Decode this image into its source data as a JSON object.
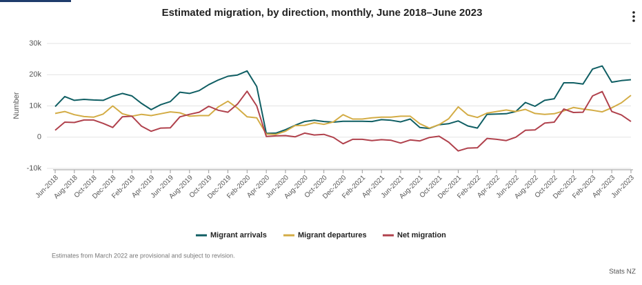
{
  "chart_data": {
    "type": "line",
    "title": "Estimated migration, by direction, monthly, June 2018–June 2023",
    "y_label": "Number",
    "note": "Estimates from March 2022 are provisional and subject to revision.",
    "source": "Stats NZ",
    "categories": [
      "Jun-2018",
      null,
      "Aug-2018",
      null,
      "Oct-2018",
      null,
      "Dec-2018",
      null,
      "Feb-2019",
      null,
      "Apr-2019",
      null,
      "Jun-2019",
      null,
      "Aug-2019",
      null,
      "Oct-2019",
      null,
      "Dec-2019",
      null,
      "Feb-2020",
      null,
      "Apr-2020",
      null,
      "Jun-2020",
      null,
      "Aug-2020",
      null,
      "Oct-2020",
      null,
      "Dec-2020",
      null,
      "Feb-2021",
      null,
      "Apr-2021",
      null,
      "Jun-2021",
      null,
      "Aug-2021",
      null,
      "Oct-2021",
      null,
      "Dec-2021",
      null,
      "Feb-2022",
      null,
      "Apr-2022",
      null,
      "Jun-2022",
      null,
      "Aug-2022",
      null,
      "Oct-2022",
      null,
      "Dec-2022",
      null,
      "Feb-2023",
      null,
      "Apr-2023",
      null,
      "Jun-2023"
    ],
    "series": [
      {
        "name": "Migrant arrivals",
        "color": "#0f5e63",
        "values": [
          9800,
          13000,
          11800,
          12100,
          11900,
          11800,
          13100,
          14000,
          13200,
          10800,
          8800,
          10400,
          11400,
          14400,
          14000,
          14900,
          16800,
          18300,
          19500,
          19900,
          21200,
          16200,
          1200,
          1300,
          2400,
          3800,
          5000,
          5400,
          5000,
          4800,
          5100,
          5100,
          5100,
          5000,
          5600,
          5400,
          4900,
          5800,
          3100,
          2800,
          4000,
          4300,
          5200,
          3600,
          2900,
          7300,
          7400,
          7500,
          8200,
          11100,
          9900,
          11800,
          12300,
          17400,
          17400,
          17000,
          21800,
          22800,
          17600,
          18100,
          18400
        ]
      },
      {
        "name": "Migrant departures",
        "color": "#d3ac45",
        "values": [
          7600,
          8200,
          7200,
          6600,
          6400,
          7400,
          10000,
          7500,
          6700,
          7300,
          6900,
          7500,
          8100,
          7800,
          6700,
          6900,
          6900,
          9700,
          11500,
          9300,
          6500,
          6200,
          1000,
          900,
          1900,
          3700,
          3800,
          4600,
          4100,
          4900,
          7200,
          5800,
          5800,
          6200,
          6400,
          6400,
          6700,
          6700,
          4300,
          2900,
          4000,
          5900,
          9700,
          7100,
          6300,
          7700,
          8200,
          8700,
          8200,
          8900,
          7600,
          7300,
          7500,
          8400,
          9500,
          9000,
          8600,
          8100,
          9400,
          11000,
          13400
        ]
      },
      {
        "name": "Net migration",
        "color": "#b0414c",
        "values": [
          2200,
          4800,
          4700,
          5500,
          5500,
          4400,
          3100,
          6500,
          6700,
          3500,
          1900,
          2900,
          3000,
          6500,
          7300,
          8000,
          9900,
          8600,
          8000,
          10600,
          14700,
          10000,
          200,
          400,
          500,
          100,
          1300,
          700,
          900,
          -100,
          -2100,
          -700,
          -700,
          -1100,
          -800,
          -1000,
          -1900,
          -900,
          -1200,
          -100,
          300,
          -1600,
          -4400,
          -3500,
          -3400,
          -400,
          -700,
          -1100,
          0,
          2200,
          2300,
          4500,
          4800,
          9000,
          7900,
          8000,
          13200,
          14600,
          8200,
          7100,
          5000
        ]
      }
    ],
    "ylim": [
      -10000,
      30000
    ],
    "yticks": [
      {
        "value": -10000,
        "label": "-10k"
      },
      0,
      {
        "value": 10000,
        "label": "10k"
      },
      {
        "value": 20000,
        "label": "20k"
      },
      {
        "value": 30000,
        "label": "30k"
      }
    ],
    "grid": true
  }
}
